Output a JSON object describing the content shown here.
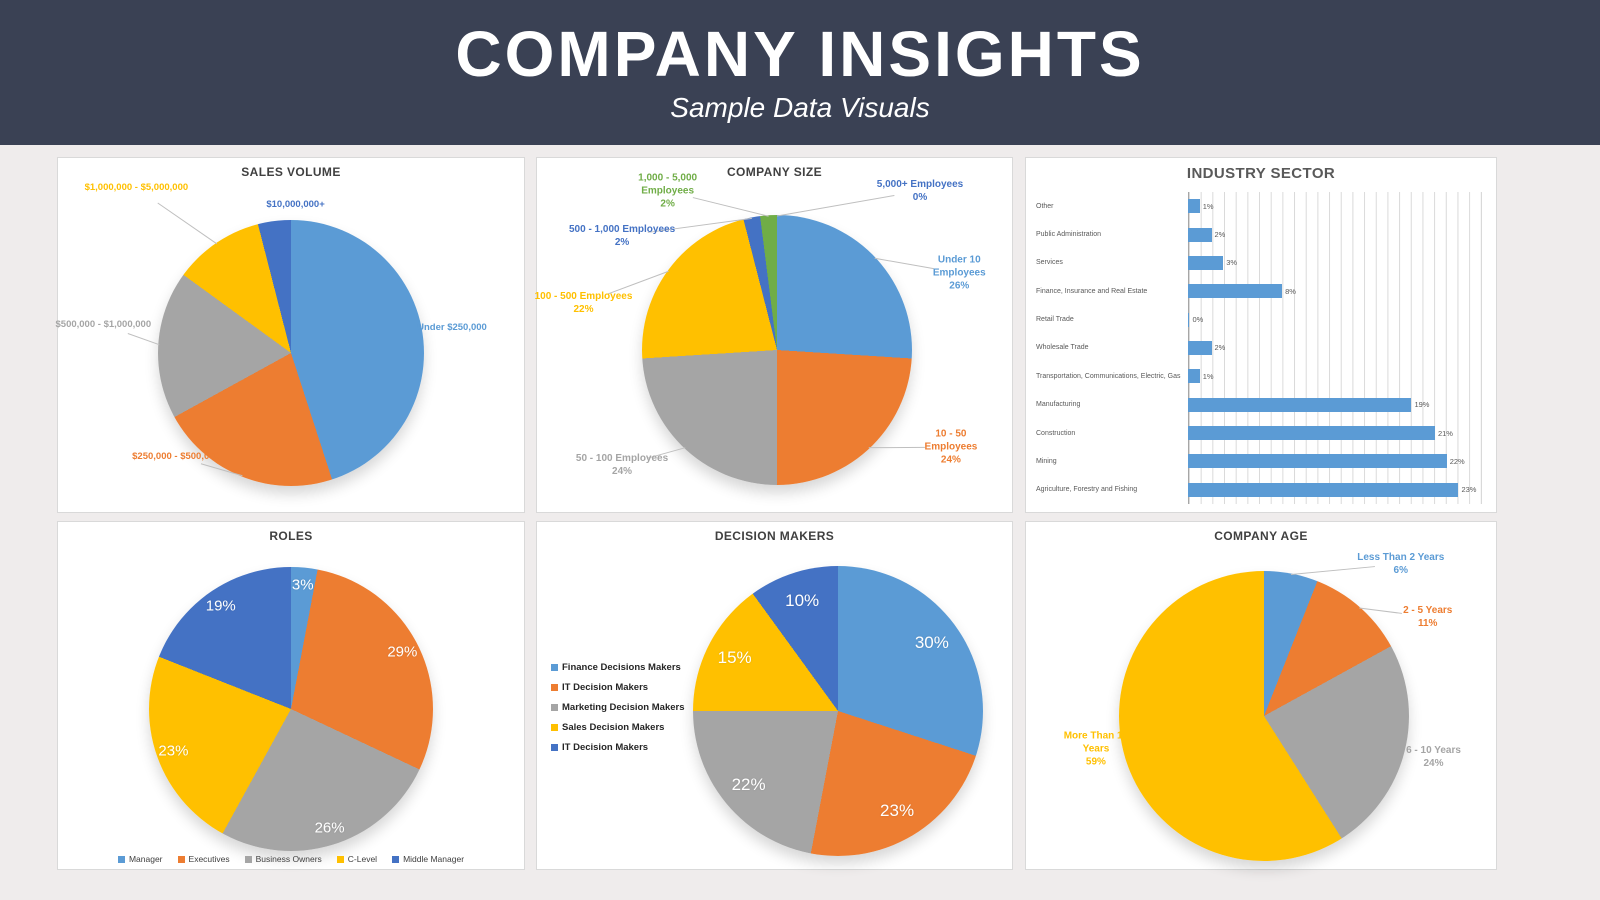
{
  "header": {
    "title": "COMPANY INSIGHTS",
    "subtitle": "Sample Data Visuals",
    "bg_color": "#3A4154",
    "text_color": "#FFFFFF"
  },
  "palette": {
    "blue": "#5B9BD5",
    "orange": "#ED7D31",
    "gray": "#A5A5A5",
    "yellow": "#FFC000",
    "dark_blue": "#4472C4",
    "green": "#70AD47",
    "bar_blue": "#5B9BD5"
  },
  "chart_data": [
    {
      "id": "sales-volume",
      "type": "pie",
      "title": "SALES VOLUME",
      "legend_position": "none",
      "slices": [
        {
          "label": "Under $250,000",
          "value": 45,
          "color": "#5B9BD5"
        },
        {
          "label": "$250,000 - $500,000",
          "value": 22,
          "color": "#ED7D31"
        },
        {
          "label": "$500,000 - $1,000,000",
          "value": 18,
          "color": "#A5A5A5"
        },
        {
          "label": "$1,000,000 - $5,000,000",
          "value": 11,
          "color": "#FFC000"
        },
        {
          "label": "$10,000,000+",
          "value": 4,
          "color": "#4472C4"
        }
      ]
    },
    {
      "id": "company-size",
      "type": "pie",
      "title": "COMPANY SIZE",
      "legend_position": "none",
      "slices": [
        {
          "label": "Under 10 Employees",
          "value": 26,
          "pct": "26%",
          "color": "#5B9BD5"
        },
        {
          "label": "10 - 50 Employees",
          "value": 24,
          "pct": "24%",
          "color": "#ED7D31"
        },
        {
          "label": "50 - 100 Employees",
          "value": 24,
          "pct": "24%",
          "color": "#A5A5A5"
        },
        {
          "label": "100 - 500 Employees",
          "value": 22,
          "pct": "22%",
          "color": "#FFC000"
        },
        {
          "label": "500 - 1,000 Employees",
          "value": 2,
          "pct": "2%",
          "color": "#4472C4"
        },
        {
          "label": "1,000 - 5,000\nEmployees",
          "value": 2,
          "pct": "2%",
          "color": "#70AD47"
        },
        {
          "label": "5,000+ Employees",
          "value": 0,
          "pct": "0%",
          "color": "#4472C4"
        }
      ]
    },
    {
      "id": "industry-sector",
      "type": "bar",
      "title": "INDUSTRY SECTOR",
      "orientation": "horizontal",
      "grid": true,
      "xmax": 25,
      "gridline_step": 1,
      "bar_color": "#5B9BD5",
      "value_suffix": "%",
      "categories": [
        "Other",
        "Public Administration",
        "Services",
        "Finance, Insurance and Real Estate",
        "Retail Trade",
        "Wholesale Trade",
        "Transportation, Communications, Electric, Gas",
        "Manufacturing",
        "Construction",
        "Mining",
        "Agriculture, Forestry and Fishing"
      ],
      "values": [
        1,
        2,
        3,
        8,
        0,
        2,
        1,
        19,
        21,
        22,
        23
      ]
    },
    {
      "id": "roles",
      "type": "pie",
      "title": "ROLES",
      "legend_position": "bottom",
      "slices": [
        {
          "label": "Manager",
          "value": 3,
          "pct": "3%",
          "color": "#5B9BD5"
        },
        {
          "label": "Executives",
          "value": 29,
          "pct": "29%",
          "color": "#ED7D31"
        },
        {
          "label": "Business Owners",
          "value": 26,
          "pct": "26%",
          "color": "#A5A5A5"
        },
        {
          "label": "C-Level",
          "value": 23,
          "pct": "23%",
          "color": "#FFC000"
        },
        {
          "label": "Middle Manager",
          "value": 19,
          "pct": "19%",
          "color": "#4472C4"
        }
      ]
    },
    {
      "id": "decision-makers",
      "type": "pie",
      "title": "DECISION MAKERS",
      "legend_position": "left",
      "slices": [
        {
          "label": "Finance Decisions Makers",
          "value": 30,
          "pct": "30%",
          "color": "#5B9BD5"
        },
        {
          "label": "IT Decision Makers",
          "value": 23,
          "pct": "23%",
          "color": "#ED7D31"
        },
        {
          "label": "Marketing Decision Makers",
          "value": 22,
          "pct": "22%",
          "color": "#A5A5A5"
        },
        {
          "label": "Sales Decision Makers",
          "value": 15,
          "pct": "15%",
          "color": "#FFC000"
        },
        {
          "label": "IT Decision Makers",
          "value": 10,
          "pct": "10%",
          "color": "#4472C4"
        }
      ]
    },
    {
      "id": "company-age",
      "type": "pie",
      "title": "COMPANY AGE",
      "legend_position": "none",
      "slices": [
        {
          "label": "Less Than 2 Years",
          "value": 6,
          "pct": "6%",
          "color": "#5B9BD5"
        },
        {
          "label": "2 - 5 Years",
          "value": 11,
          "pct": "11%",
          "color": "#ED7D31"
        },
        {
          "label": "6 - 10 Years",
          "value": 24,
          "pct": "24%",
          "color": "#A5A5A5"
        },
        {
          "label": "More Than 10\nYears",
          "value": 59,
          "pct": "59%",
          "color": "#FFC000"
        }
      ]
    }
  ]
}
